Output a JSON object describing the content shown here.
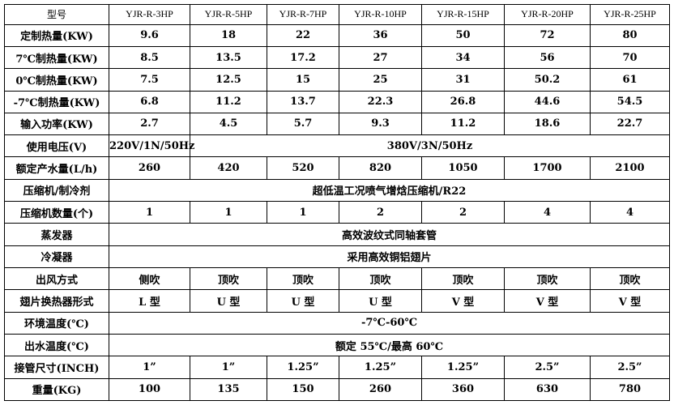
{
  "header": {
    "label": "型号",
    "models": [
      "YJR-R-3HP",
      "YJR-R-5HP",
      "YJR-R-7HP",
      "YJR-R-10HP",
      "YJR-R-15HP",
      "YJR-R-20HP",
      "YJR-R-25HP"
    ]
  },
  "rows": [
    {
      "label": "定制热量(KW)",
      "values": [
        "9.6",
        "18",
        "22",
        "36",
        "50",
        "72",
        "80"
      ]
    },
    {
      "label": "7℃制热量(KW)",
      "values": [
        "8.5",
        "13.5",
        "17.2",
        "27",
        "34",
        "56",
        "70"
      ]
    },
    {
      "label": "0℃制热量(KW)",
      "values": [
        "7.5",
        "12.5",
        "15",
        "25",
        "31",
        "50.2",
        "61"
      ]
    },
    {
      "label": "-7℃制热量(KW)",
      "values": [
        "6.8",
        "11.2",
        "13.7",
        "22.3",
        "26.8",
        "44.6",
        "54.5"
      ]
    },
    {
      "label": "输入功率(KW)",
      "values": [
        "2.7",
        "4.5",
        "5.7",
        "9.3",
        "11.2",
        "18.6",
        "22.7"
      ]
    }
  ],
  "voltage": {
    "label": "使用电压(V)",
    "single": "220V/1N/50Hz",
    "three": "380V/3N/50Hz"
  },
  "water": {
    "label": "额定产水量(L/h)",
    "values": [
      "260",
      "420",
      "520",
      "820",
      "1050",
      "1700",
      "2100"
    ]
  },
  "compressor": {
    "label": "压缩机/制冷剂",
    "value": "超低温工况喷气增焓压缩机/R22"
  },
  "compressor_count": {
    "label": "压缩机数量(个)",
    "values": [
      "1",
      "1",
      "1",
      "2",
      "2",
      "4",
      "4"
    ]
  },
  "evaporator": {
    "label": "蒸发器",
    "value": "高效波纹式同轴套管"
  },
  "condenser": {
    "label": "冷凝器",
    "value": "采用高效铜铝翅片"
  },
  "airflow": {
    "label": "出风方式",
    "values": [
      "侧吹",
      "顶吹",
      "顶吹",
      "顶吹",
      "顶吹",
      "顶吹",
      "顶吹"
    ]
  },
  "fin": {
    "label": "翅片换热器形式",
    "values": [
      "L 型",
      "U 型",
      "U 型",
      "U 型",
      "V 型",
      "V 型",
      "V 型"
    ]
  },
  "ambient": {
    "label": "环境温度(℃)",
    "value": "-7℃-60℃"
  },
  "outlet": {
    "label": "出水温度(℃)",
    "value": "额定 55℃/最高 60℃"
  },
  "pipe": {
    "label": "接管尺寸(INCH)",
    "values": [
      "1”",
      "1”",
      "1.25”",
      "1.25”",
      "1.25”",
      "2.5”",
      "2.5”"
    ]
  },
  "weight": {
    "label": "重量(KG)",
    "values": [
      "100",
      "135",
      "150",
      "260",
      "360",
      "630",
      "780"
    ]
  }
}
